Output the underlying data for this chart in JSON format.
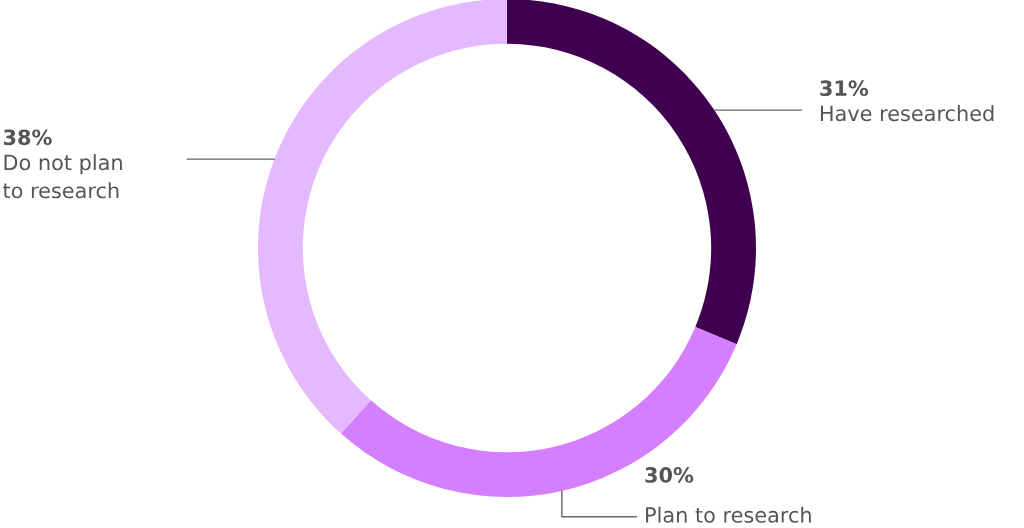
{
  "chart_data": {
    "type": "donut",
    "categories": [
      "Have researched",
      "Plan to research",
      "Do not plan\nto research"
    ],
    "values": [
      31,
      30,
      38
    ],
    "value_labels": [
      "31%",
      "30%",
      "38%"
    ],
    "colors": [
      "#3f0050",
      "#d47fff",
      "#e5b9ff"
    ],
    "legend": false
  }
}
